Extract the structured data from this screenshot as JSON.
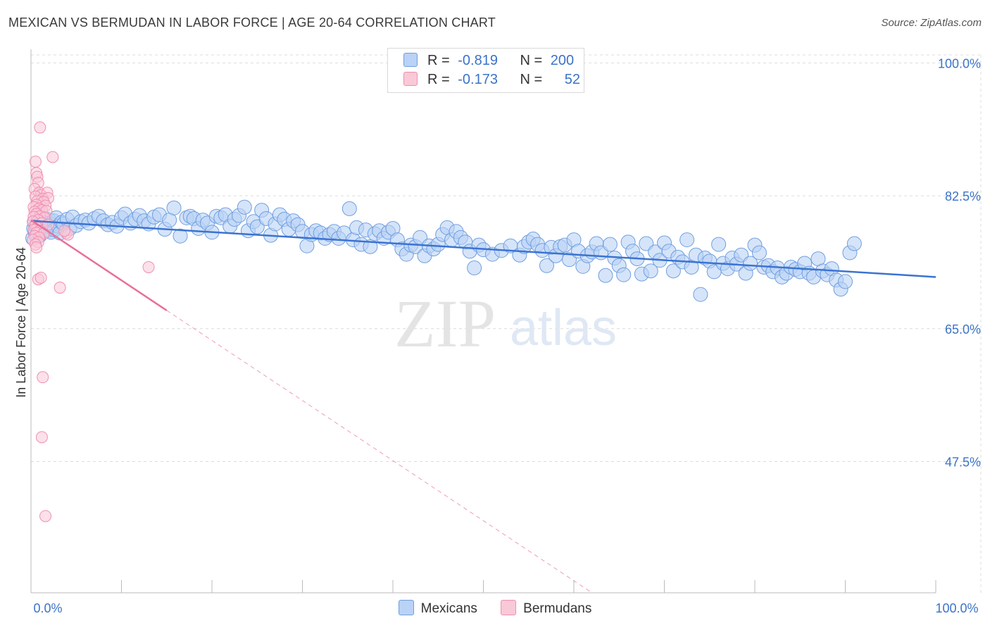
{
  "title": "MEXICAN VS BERMUDAN IN LABOR FORCE | AGE 20-64 CORRELATION CHART",
  "source": "Source: ZipAtlas.com",
  "watermark": {
    "zip": "ZIP",
    "atlas": "atlas"
  },
  "legend": {
    "r_label": "R =",
    "n_label": "N =",
    "rows": [
      {
        "r": "-0.819",
        "n": "200",
        "fill": "#b9d2f5",
        "stroke": "#6f9fe0"
      },
      {
        "r": "-0.173",
        "n": "52",
        "fill": "#f9c9d8",
        "stroke": "#ef8fb0"
      }
    ]
  },
  "bottom_legend": [
    {
      "label": "Mexicans",
      "fill": "#b9d2f5",
      "stroke": "#6f9fe0"
    },
    {
      "label": "Bermudans",
      "fill": "#f9c9d8",
      "stroke": "#ef8fb0"
    }
  ],
  "colors": {
    "blue_line": "#3b73d1",
    "pink_line": "#e8709b",
    "tick_label": "#3b73c8",
    "grid": "#dcdcdc"
  },
  "chart_data": {
    "type": "scatter",
    "title": "MEXICAN VS BERMUDAN IN LABOR FORCE | AGE 20-64 CORRELATION CHART",
    "xlabel": "",
    "ylabel": "In Labor Force | Age 20-64",
    "xlim": [
      0,
      100
    ],
    "ylim": [
      30.2,
      101.8
    ],
    "x_tick_labels": [
      "0.0%",
      "100.0%"
    ],
    "y_ticks": [
      {
        "value": 100.0,
        "label": "100.0%"
      },
      {
        "value": 82.5,
        "label": "82.5%"
      },
      {
        "value": 65.0,
        "label": "65.0%"
      },
      {
        "value": 47.5,
        "label": "47.5%"
      }
    ],
    "grid": true,
    "series": [
      {
        "name": "Mexicans",
        "r": -0.819,
        "n": 200,
        "trend": {
          "x": [
            0,
            100
          ],
          "y": [
            79.2,
            71.8
          ]
        },
        "points": [
          [
            0.2,
            76.9
          ],
          [
            0.3,
            78.2
          ],
          [
            0.4,
            79.0
          ],
          [
            0.5,
            77.6
          ],
          [
            0.6,
            78.5
          ],
          [
            0.7,
            77.1
          ],
          [
            0.8,
            79.4
          ],
          [
            0.9,
            78.0
          ],
          [
            1.0,
            77.3
          ],
          [
            1.1,
            78.8
          ],
          [
            1.2,
            78.3
          ],
          [
            1.3,
            79.1
          ],
          [
            1.4,
            77.8
          ],
          [
            1.5,
            78.6
          ],
          [
            1.6,
            79.5
          ],
          [
            1.7,
            78.1
          ],
          [
            1.8,
            77.9
          ],
          [
            1.9,
            78.9
          ],
          [
            2.0,
            79.3
          ],
          [
            2.1,
            78.4
          ],
          [
            2.2,
            77.7
          ],
          [
            2.3,
            78.7
          ],
          [
            2.5,
            79.2
          ],
          [
            2.6,
            78.0
          ],
          [
            2.8,
            79.6
          ],
          [
            3.0,
            78.5
          ],
          [
            3.2,
            77.6
          ],
          [
            3.4,
            79.0
          ],
          [
            3.6,
            78.8
          ],
          [
            4.0,
            79.4
          ],
          [
            4.3,
            78.2
          ],
          [
            4.6,
            79.7
          ],
          [
            5.0,
            78.6
          ],
          [
            5.5,
            79.1
          ],
          [
            6.0,
            79.3
          ],
          [
            6.4,
            78.9
          ],
          [
            7.0,
            79.5
          ],
          [
            7.5,
            79.8
          ],
          [
            8.0,
            79.2
          ],
          [
            8.5,
            78.7
          ],
          [
            9.0,
            79.0
          ],
          [
            9.5,
            78.5
          ],
          [
            10.0,
            79.6
          ],
          [
            10.4,
            80.1
          ],
          [
            11.0,
            78.9
          ],
          [
            11.5,
            79.4
          ],
          [
            12.0,
            79.9
          ],
          [
            12.5,
            79.2
          ],
          [
            13.0,
            78.8
          ],
          [
            13.6,
            79.7
          ],
          [
            14.2,
            80.0
          ],
          [
            14.8,
            78.1
          ],
          [
            15.3,
            79.3
          ],
          [
            15.8,
            80.9
          ],
          [
            16.5,
            77.2
          ],
          [
            17.2,
            79.6
          ],
          [
            17.6,
            79.8
          ],
          [
            18.0,
            79.5
          ],
          [
            18.5,
            78.2
          ],
          [
            19.0,
            79.3
          ],
          [
            19.5,
            78.9
          ],
          [
            20.0,
            77.7
          ],
          [
            20.5,
            79.8
          ],
          [
            21.0,
            79.6
          ],
          [
            21.5,
            80.0
          ],
          [
            22.0,
            78.5
          ],
          [
            22.5,
            79.4
          ],
          [
            23.0,
            79.9
          ],
          [
            23.6,
            81.0
          ],
          [
            24.0,
            77.9
          ],
          [
            24.6,
            79.1
          ],
          [
            25.0,
            78.4
          ],
          [
            25.5,
            80.6
          ],
          [
            26.0,
            79.5
          ],
          [
            26.5,
            77.3
          ],
          [
            27.0,
            78.8
          ],
          [
            27.5,
            80.0
          ],
          [
            28.0,
            79.4
          ],
          [
            28.5,
            78.1
          ],
          [
            29.0,
            79.2
          ],
          [
            29.5,
            78.7
          ],
          [
            30.0,
            77.8
          ],
          [
            30.5,
            75.9
          ],
          [
            31.0,
            77.4
          ],
          [
            31.5,
            77.9
          ],
          [
            32.0,
            77.6
          ],
          [
            32.5,
            76.9
          ],
          [
            33.0,
            77.4
          ],
          [
            33.5,
            77.8
          ],
          [
            34.0,
            76.9
          ],
          [
            34.6,
            77.6
          ],
          [
            35.2,
            80.8
          ],
          [
            35.6,
            76.7
          ],
          [
            36.0,
            78.3
          ],
          [
            36.5,
            76.1
          ],
          [
            37.0,
            78.0
          ],
          [
            37.5,
            75.8
          ],
          [
            38.0,
            77.5
          ],
          [
            38.5,
            77.9
          ],
          [
            39.0,
            76.9
          ],
          [
            39.5,
            77.7
          ],
          [
            40.0,
            78.2
          ],
          [
            40.5,
            76.7
          ],
          [
            41.0,
            75.5
          ],
          [
            41.5,
            74.8
          ],
          [
            42.0,
            76.0
          ],
          [
            42.5,
            75.8
          ],
          [
            43.0,
            77.0
          ],
          [
            43.5,
            74.6
          ],
          [
            44.0,
            75.9
          ],
          [
            44.5,
            75.5
          ],
          [
            45.0,
            76.1
          ],
          [
            45.5,
            77.4
          ],
          [
            46.0,
            78.3
          ],
          [
            46.5,
            76.7
          ],
          [
            47.0,
            77.8
          ],
          [
            47.5,
            77.0
          ],
          [
            48.0,
            76.4
          ],
          [
            48.5,
            75.2
          ],
          [
            49.0,
            73.0
          ],
          [
            49.5,
            76.0
          ],
          [
            50.0,
            75.4
          ],
          [
            51.0,
            74.8
          ],
          [
            52.0,
            75.3
          ],
          [
            53.0,
            75.9
          ],
          [
            54.0,
            74.7
          ],
          [
            54.5,
            75.8
          ],
          [
            55.0,
            76.4
          ],
          [
            55.5,
            76.8
          ],
          [
            56.0,
            76.1
          ],
          [
            56.5,
            75.3
          ],
          [
            57.0,
            73.3
          ],
          [
            57.5,
            75.7
          ],
          [
            58.0,
            74.6
          ],
          [
            58.5,
            75.8
          ],
          [
            59.0,
            76.0
          ],
          [
            59.5,
            74.1
          ],
          [
            60.0,
            76.7
          ],
          [
            60.5,
            75.2
          ],
          [
            61.0,
            73.2
          ],
          [
            61.5,
            74.6
          ],
          [
            62.0,
            75.1
          ],
          [
            62.5,
            76.2
          ],
          [
            63.0,
            75.0
          ],
          [
            63.5,
            72.0
          ],
          [
            64.0,
            76.1
          ],
          [
            64.5,
            74.3
          ],
          [
            65.0,
            73.3
          ],
          [
            65.5,
            72.1
          ],
          [
            66.0,
            76.4
          ],
          [
            66.5,
            75.2
          ],
          [
            67.0,
            74.2
          ],
          [
            67.5,
            72.2
          ],
          [
            68.0,
            76.2
          ],
          [
            68.5,
            72.6
          ],
          [
            69.0,
            75.1
          ],
          [
            69.5,
            74.0
          ],
          [
            70.0,
            76.3
          ],
          [
            70.5,
            75.2
          ],
          [
            71.0,
            72.6
          ],
          [
            71.5,
            74.4
          ],
          [
            72.0,
            73.8
          ],
          [
            72.5,
            76.7
          ],
          [
            73.0,
            73.1
          ],
          [
            73.5,
            74.7
          ],
          [
            74.0,
            69.5
          ],
          [
            74.5,
            74.3
          ],
          [
            75.0,
            73.9
          ],
          [
            75.5,
            72.5
          ],
          [
            76.0,
            76.1
          ],
          [
            76.5,
            73.6
          ],
          [
            77.0,
            72.9
          ],
          [
            77.5,
            74.3
          ],
          [
            78.0,
            73.5
          ],
          [
            78.5,
            74.7
          ],
          [
            79.0,
            72.3
          ],
          [
            79.5,
            73.6
          ],
          [
            80.0,
            76.0
          ],
          [
            80.5,
            75.0
          ],
          [
            81.0,
            73.1
          ],
          [
            81.5,
            73.3
          ],
          [
            82.0,
            72.5
          ],
          [
            82.5,
            73.0
          ],
          [
            83.0,
            71.8
          ],
          [
            83.5,
            72.3
          ],
          [
            84.0,
            73.1
          ],
          [
            84.5,
            72.8
          ],
          [
            85.0,
            72.5
          ],
          [
            85.5,
            73.6
          ],
          [
            86.0,
            72.3
          ],
          [
            86.5,
            71.8
          ],
          [
            87.0,
            74.2
          ],
          [
            87.5,
            72.6
          ],
          [
            88.0,
            72.1
          ],
          [
            88.5,
            72.9
          ],
          [
            89.0,
            71.4
          ],
          [
            89.5,
            70.2
          ],
          [
            90.0,
            71.2
          ],
          [
            90.5,
            75.0
          ],
          [
            91.0,
            76.2
          ]
        ]
      },
      {
        "name": "Bermudans",
        "r": -0.173,
        "n": 52,
        "trend": {
          "x": [
            0,
            15
          ],
          "y": [
            79.3,
            67.4
          ],
          "dashed_extension_to": {
            "x": 62,
            "y": 30.2
          }
        },
        "points": [
          [
            1.0,
            91.5
          ],
          [
            2.4,
            87.6
          ],
          [
            0.5,
            87.0
          ],
          [
            0.6,
            85.5
          ],
          [
            0.7,
            85.0
          ],
          [
            0.8,
            84.2
          ],
          [
            0.4,
            83.4
          ],
          [
            0.9,
            82.9
          ],
          [
            1.1,
            82.6
          ],
          [
            1.8,
            82.9
          ],
          [
            0.5,
            82.4
          ],
          [
            1.3,
            82.1
          ],
          [
            1.9,
            82.2
          ],
          [
            0.7,
            81.8
          ],
          [
            1.4,
            81.7
          ],
          [
            0.6,
            81.3
          ],
          [
            1.6,
            81.2
          ],
          [
            0.3,
            81.0
          ],
          [
            0.9,
            80.8
          ],
          [
            1.2,
            80.6
          ],
          [
            0.4,
            80.4
          ],
          [
            1.7,
            80.5
          ],
          [
            0.6,
            80.1
          ],
          [
            1.0,
            79.8
          ],
          [
            0.3,
            79.7
          ],
          [
            1.5,
            79.6
          ],
          [
            0.8,
            79.3
          ],
          [
            0.2,
            79.1
          ],
          [
            1.2,
            78.9
          ],
          [
            0.5,
            78.6
          ],
          [
            1.9,
            78.7
          ],
          [
            0.7,
            78.3
          ],
          [
            0.3,
            78.0
          ],
          [
            1.0,
            77.9
          ],
          [
            0.6,
            77.6
          ],
          [
            1.4,
            77.5
          ],
          [
            0.4,
            77.2
          ],
          [
            0.9,
            77.0
          ],
          [
            0.2,
            76.7
          ],
          [
            0.8,
            76.4
          ],
          [
            0.5,
            76.1
          ],
          [
            0.6,
            75.7
          ],
          [
            3.9,
            77.6
          ],
          [
            4.1,
            77.4
          ],
          [
            3.7,
            77.9
          ],
          [
            0.8,
            71.5
          ],
          [
            1.1,
            71.7
          ],
          [
            3.2,
            70.4
          ],
          [
            13.0,
            73.1
          ],
          [
            1.3,
            58.6
          ],
          [
            1.2,
            50.7
          ],
          [
            1.6,
            40.3
          ]
        ]
      }
    ]
  }
}
